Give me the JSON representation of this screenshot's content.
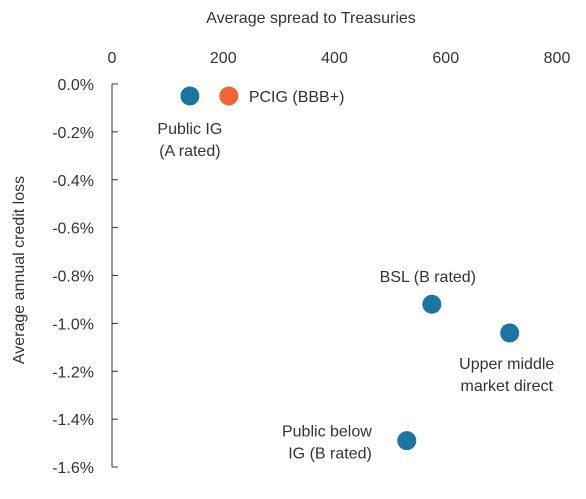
{
  "chart_data": {
    "type": "scatter",
    "xlabel": "Average spread to Treasuries",
    "ylabel": "Average annual credit loss",
    "xlim": [
      0,
      800
    ],
    "ylim": [
      -1.6,
      0.0
    ],
    "x_ticks": [
      0,
      200,
      400,
      600,
      800
    ],
    "x_tick_labels": [
      "0",
      "200",
      "400",
      "600",
      "800"
    ],
    "y_ticks": [
      0.0,
      -0.2,
      -0.4,
      -0.6,
      -0.8,
      -1.0,
      -1.2,
      -1.4,
      -1.6
    ],
    "y_tick_labels": [
      "0.0%",
      "-0.2%",
      "-0.4%",
      "-0.6%",
      "-0.8%",
      "-1.0%",
      "-1.2%",
      "-1.4%",
      "-1.6%"
    ],
    "x_axis_position": "top",
    "grid": false,
    "colors": {
      "blue": "#1b75a0",
      "orange": "#f26532"
    },
    "points": [
      {
        "x": 140,
        "y": -0.05,
        "color": "#1b75a0",
        "label_lines": [
          "Public IG",
          "(A rated)"
        ]
      },
      {
        "x": 210,
        "y": -0.05,
        "color": "#f26532",
        "label_lines": [
          "PCIG (BBB+)"
        ]
      },
      {
        "x": 575,
        "y": -0.92,
        "color": "#1b75a0",
        "label_lines": [
          "BSL (B rated)"
        ]
      },
      {
        "x": 715,
        "y": -1.04,
        "color": "#1b75a0",
        "label_lines": [
          "Upper middle",
          "market direct"
        ]
      },
      {
        "x": 530,
        "y": -1.49,
        "color": "#1b75a0",
        "label_lines": [
          "Public below",
          "IG (B rated)"
        ]
      }
    ]
  }
}
